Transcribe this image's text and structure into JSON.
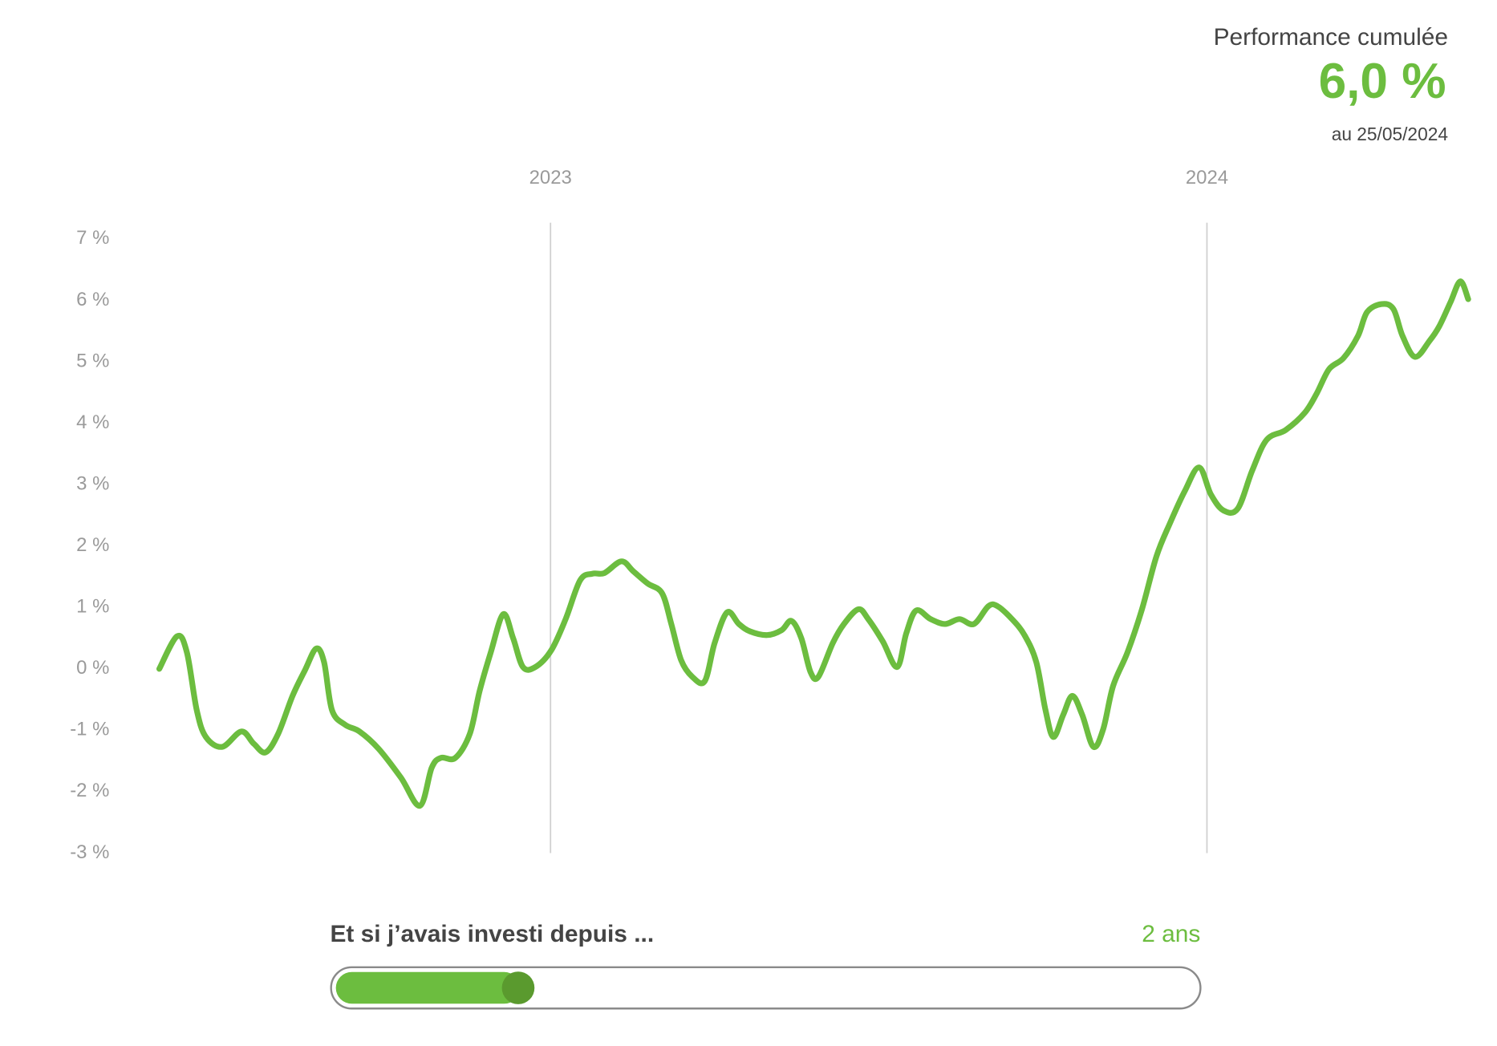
{
  "header": {
    "title": "Performance cumulée",
    "value": "6,0 %",
    "date": "au 25/05/2024"
  },
  "chart_data": {
    "type": "line",
    "color": "#6cbd3f",
    "grid": true,
    "xlim": [
      2022.404,
      2024.398
    ],
    "xticks": [
      2023,
      2024
    ],
    "ylim": [
      -3,
      7
    ],
    "yticks": [
      {
        "value": -3,
        "label": "-3 %"
      },
      {
        "value": -2,
        "label": "-2 %"
      },
      {
        "value": -1,
        "label": "-1 %"
      },
      {
        "value": 0,
        "label": "0 %"
      },
      {
        "value": 1,
        "label": "1 %"
      },
      {
        "value": 2,
        "label": "2 %"
      },
      {
        "value": 3,
        "label": "3 %"
      },
      {
        "value": 4,
        "label": "4 %"
      },
      {
        "value": 5,
        "label": "5 %"
      },
      {
        "value": 6,
        "label": "6 %"
      },
      {
        "value": 7,
        "label": "7 %"
      }
    ],
    "x": [
      2022.404,
      2022.431,
      2022.446,
      2022.461,
      2022.475,
      2022.5,
      2022.529,
      2022.548,
      2022.566,
      2022.585,
      2022.607,
      2022.626,
      2022.643,
      2022.655,
      2022.667,
      2022.687,
      2022.709,
      2022.738,
      2022.772,
      2022.801,
      2022.819,
      2022.833,
      2022.855,
      2022.877,
      2022.892,
      2022.909,
      2022.928,
      2022.943,
      2022.958,
      2022.977,
      2023.001,
      2023.023,
      2023.045,
      2023.064,
      2023.082,
      2023.108,
      2023.126,
      2023.148,
      2023.17,
      2023.184,
      2023.199,
      2023.216,
      2023.235,
      2023.25,
      2023.269,
      2023.287,
      2023.304,
      2023.33,
      2023.352,
      2023.367,
      2023.382,
      2023.396,
      2023.408,
      2023.43,
      2023.447,
      2023.469,
      2023.484,
      2023.506,
      2023.528,
      2023.542,
      2023.557,
      2023.579,
      2023.601,
      2023.623,
      2023.645,
      2023.667,
      2023.681,
      2023.703,
      2023.722,
      2023.74,
      2023.754,
      2023.766,
      2023.781,
      2023.795,
      2023.81,
      2023.827,
      2023.842,
      2023.857,
      2023.879,
      2023.901,
      2023.923,
      2023.944,
      2023.966,
      2023.988,
      2024.006,
      2024.025,
      2024.047,
      2024.069,
      2024.091,
      2024.12,
      2024.149,
      2024.167,
      2024.186,
      2024.208,
      2024.23,
      2024.244,
      2024.266,
      2024.284,
      2024.298,
      2024.317,
      2024.339,
      2024.354,
      2024.371,
      2024.386,
      2024.398
    ],
    "values": [
      0,
      0.53,
      0.27,
      -0.67,
      -1.11,
      -1.27,
      -1.02,
      -1.22,
      -1.36,
      -1.06,
      -0.44,
      -0.02,
      0.33,
      0.11,
      -0.67,
      -0.91,
      -1.02,
      -1.3,
      -1.77,
      -2.23,
      -1.61,
      -1.45,
      -1.45,
      -1.06,
      -0.36,
      0.27,
      0.89,
      0.5,
      0.03,
      0.03,
      0.3,
      0.81,
      1.44,
      1.55,
      1.56,
      1.75,
      1.59,
      1.39,
      1.23,
      0.73,
      0.14,
      -0.13,
      -0.2,
      0.42,
      0.92,
      0.73,
      0.61,
      0.55,
      0.63,
      0.78,
      0.5,
      -0.05,
      -0.13,
      0.42,
      0.73,
      0.97,
      0.81,
      0.45,
      0.03,
      0.58,
      0.95,
      0.81,
      0.73,
      0.81,
      0.73,
      1.02,
      1.02,
      0.81,
      0.55,
      0.11,
      -0.67,
      -1.11,
      -0.75,
      -0.44,
      -0.75,
      -1.27,
      -0.98,
      -0.28,
      0.27,
      0.97,
      1.83,
      2.38,
      2.89,
      3.28,
      2.84,
      2.58,
      2.61,
      3.23,
      3.73,
      3.89,
      4.17,
      4.48,
      4.88,
      5.06,
      5.42,
      5.81,
      5.94,
      5.86,
      5.42,
      5.08,
      5.34,
      5.58,
      5.97,
      6.31,
      6.02
    ]
  },
  "slider": {
    "label": "Et si j’avais investi depuis ...",
    "value": "2 ans"
  }
}
